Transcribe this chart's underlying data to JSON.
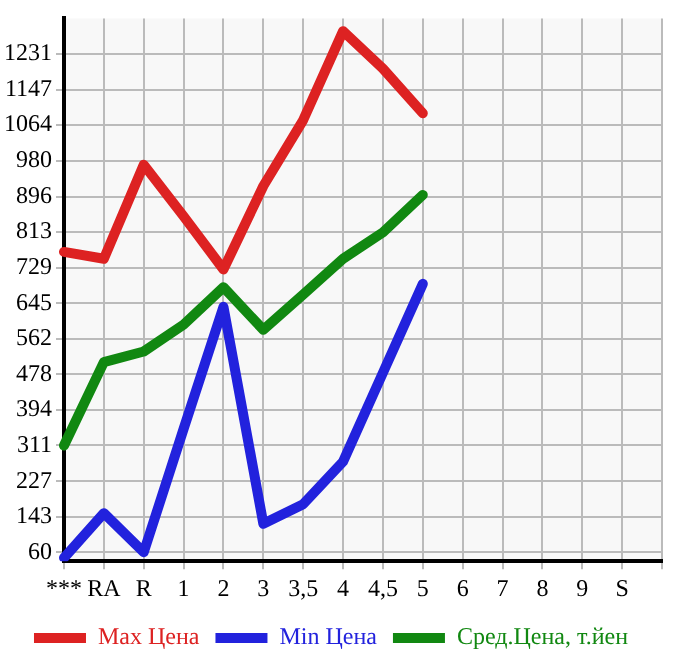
{
  "chart_data": {
    "type": "line",
    "categories": [
      "***",
      "RA",
      "R",
      "1",
      "2",
      "3",
      "3,5",
      "4",
      "4,5",
      "5",
      "6",
      "7",
      "8",
      "9",
      "S",
      null
    ],
    "series": [
      {
        "name": "Max Цена",
        "color": "#dd2222",
        "values": [
          766,
          750,
          971,
          850,
          725,
          921,
          1076,
          1285,
          1197,
          1092,
          null,
          null,
          null,
          null,
          null,
          null
        ]
      },
      {
        "name": "Min Цена",
        "color": "#2222dd",
        "values": [
          47,
          152,
          60,
          350,
          637,
          127,
          173,
          273,
          482,
          691,
          null,
          null,
          null,
          null,
          null,
          null
        ]
      },
      {
        "name": "Сред.Цена, т.йен",
        "color": "#118811",
        "values": [
          311,
          507,
          532,
          595,
          683,
          583,
          666,
          750,
          812,
          900,
          null,
          null,
          null,
          null,
          null,
          null
        ]
      }
    ],
    "ylim": [
      39,
      1315
    ],
    "yticks": [
      60,
      143,
      227,
      311,
      394,
      478,
      562,
      645,
      729,
      813,
      896,
      980,
      1064,
      1147,
      1231
    ],
    "grid": true,
    "legend": "bottom",
    "marker": "none",
    "line_style": "solid"
  }
}
